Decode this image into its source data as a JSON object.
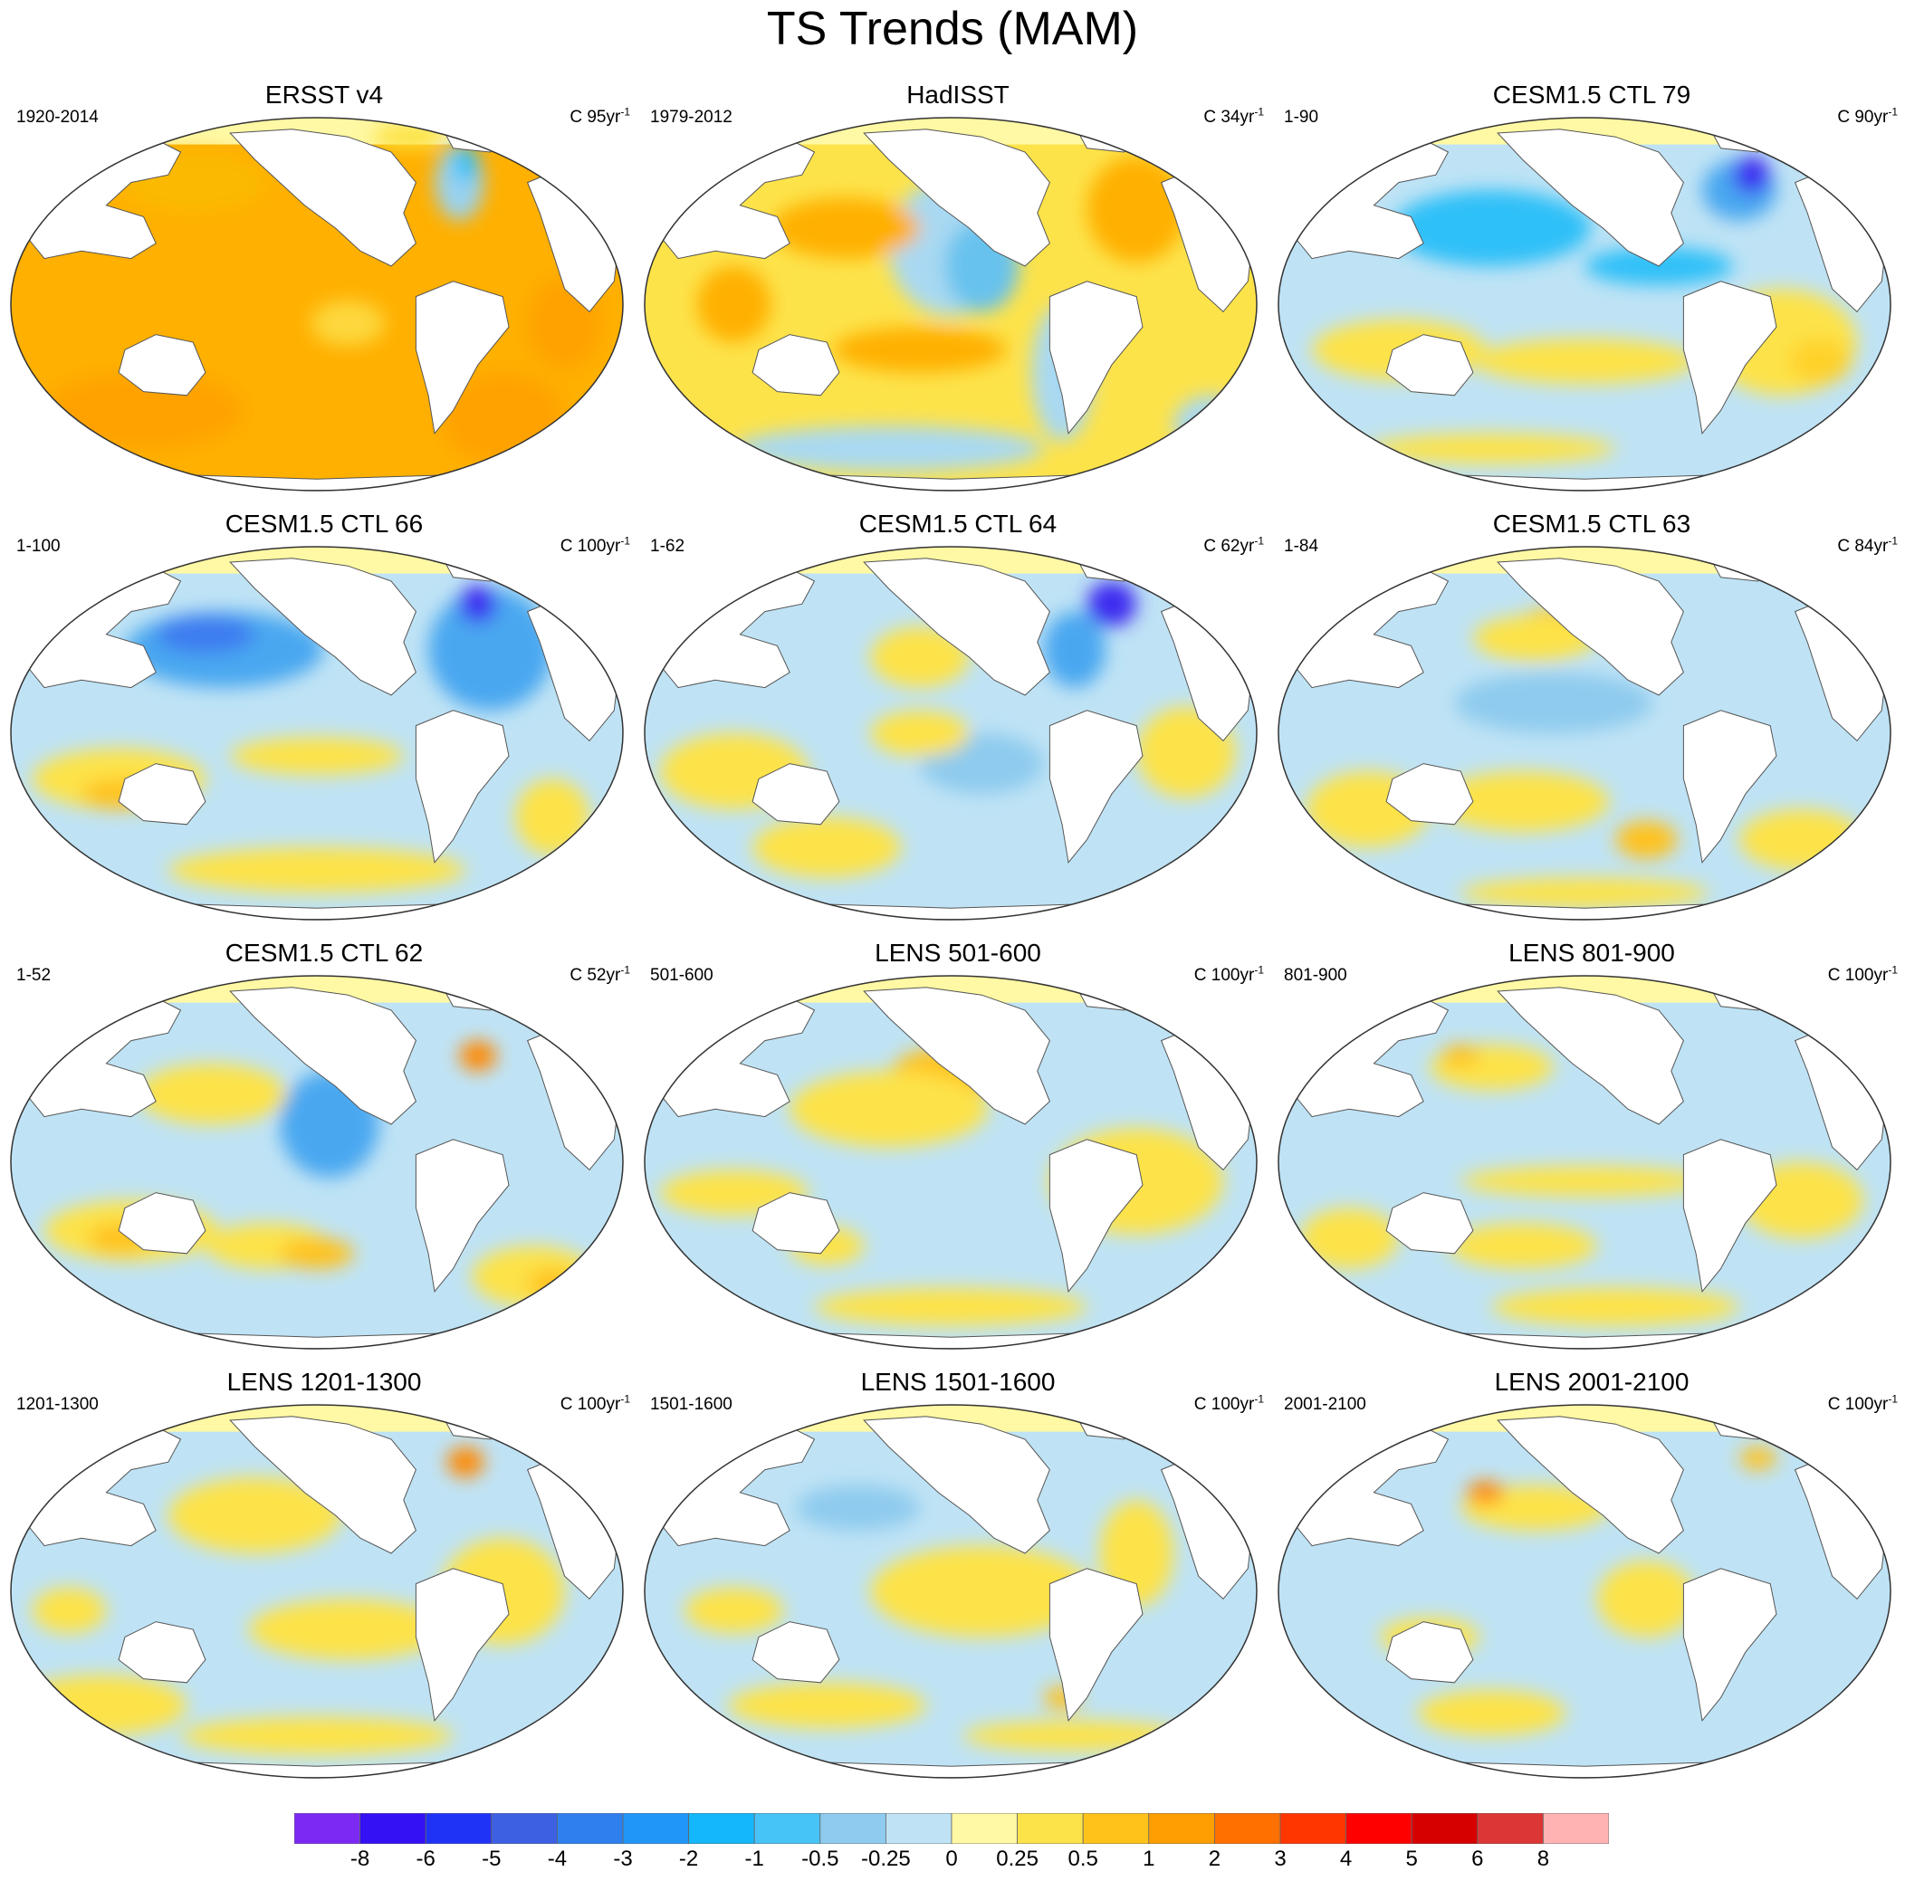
{
  "title": "TS Trends (MAM)",
  "panels": [
    {
      "title": "ERSST v4",
      "period": "1920-2014",
      "scale_value": "C 95yr",
      "scale_exp": "-1",
      "bg": "#ffb000",
      "blobs": [
        [
          "#fbb900",
          0.3,
          0.18,
          0.12,
          0.08
        ],
        [
          "#9ad2ef",
          0.73,
          0.18,
          0.04,
          0.1
        ],
        [
          "#2ec0f8",
          0.74,
          0.13,
          0.02,
          0.05
        ],
        [
          "#fce03a",
          0.65,
          0.06,
          0.06,
          0.03
        ],
        [
          "#ffa200",
          0.22,
          0.78,
          0.16,
          0.1
        ],
        [
          "#ffa200",
          0.8,
          0.8,
          0.1,
          0.12
        ],
        [
          "#fdd83c",
          0.55,
          0.55,
          0.06,
          0.06
        ],
        [
          "#ffa200",
          0.9,
          0.55,
          0.06,
          0.12
        ]
      ]
    },
    {
      "title": "HadISST",
      "period": "1979-2012",
      "scale_value": "C 34yr",
      "scale_exp": "-1",
      "bg": "#fde34a",
      "blobs": [
        [
          "#a9d9f2",
          0.5,
          0.35,
          0.1,
          0.18
        ],
        [
          "#68c2ee",
          0.55,
          0.4,
          0.06,
          0.12
        ],
        [
          "#ffb000",
          0.33,
          0.3,
          0.12,
          0.08
        ],
        [
          "#ffb000",
          0.8,
          0.25,
          0.08,
          0.14
        ],
        [
          "#ffb000",
          0.45,
          0.62,
          0.14,
          0.06
        ],
        [
          "#a9d9f2",
          0.4,
          0.88,
          0.25,
          0.06
        ],
        [
          "#a9d9f2",
          0.68,
          0.68,
          0.05,
          0.18
        ],
        [
          "#ffb000",
          0.15,
          0.5,
          0.06,
          0.1
        ],
        [
          "#a9d9f2",
          0.92,
          0.82,
          0.06,
          0.08
        ]
      ]
    },
    {
      "title": "CESM1.5 CTL 79",
      "period": "1-90",
      "scale_value": "C 90yr",
      "scale_exp": "-1",
      "bg": "#bfe3f5",
      "blobs": [
        [
          "#2ec0f8",
          0.35,
          0.3,
          0.16,
          0.1
        ],
        [
          "#49a7f0",
          0.75,
          0.2,
          0.06,
          0.08
        ],
        [
          "#3d2cf0",
          0.77,
          0.16,
          0.03,
          0.05
        ],
        [
          "#fde34a",
          0.2,
          0.62,
          0.14,
          0.08
        ],
        [
          "#fde34a",
          0.5,
          0.65,
          0.18,
          0.06
        ],
        [
          "#fde34a",
          0.82,
          0.6,
          0.12,
          0.14
        ],
        [
          "#ffd22a",
          0.88,
          0.65,
          0.05,
          0.06
        ],
        [
          "#fde34a",
          0.35,
          0.88,
          0.2,
          0.04
        ],
        [
          "#2ec0f8",
          0.62,
          0.4,
          0.12,
          0.05
        ]
      ]
    },
    {
      "title": "CESM1.5 CTL 66",
      "period": "1-100",
      "scale_value": "C 100yr",
      "scale_exp": "-1",
      "bg": "#bfe3f5",
      "blobs": [
        [
          "#49a7f0",
          0.35,
          0.28,
          0.16,
          0.1
        ],
        [
          "#3d7cf0",
          0.32,
          0.24,
          0.08,
          0.05
        ],
        [
          "#49a7f0",
          0.78,
          0.28,
          0.1,
          0.16
        ],
        [
          "#3d2cf0",
          0.76,
          0.16,
          0.03,
          0.05
        ],
        [
          "#fde34a",
          0.18,
          0.62,
          0.14,
          0.08
        ],
        [
          "#ffc21a",
          0.18,
          0.66,
          0.06,
          0.04
        ],
        [
          "#fde34a",
          0.5,
          0.56,
          0.14,
          0.05
        ],
        [
          "#fde34a",
          0.5,
          0.86,
          0.24,
          0.06
        ],
        [
          "#fde34a",
          0.88,
          0.72,
          0.06,
          0.1
        ]
      ]
    },
    {
      "title": "CESM1.5 CTL 64",
      "period": "1-62",
      "scale_value": "C 62yr",
      "scale_exp": "-1",
      "bg": "#bfe3f5",
      "blobs": [
        [
          "#ffc21a",
          0.48,
          0.28,
          0.04,
          0.05
        ],
        [
          "#fde34a",
          0.45,
          0.3,
          0.08,
          0.08
        ],
        [
          "#3d2cf0",
          0.76,
          0.16,
          0.04,
          0.06
        ],
        [
          "#49a7f0",
          0.7,
          0.28,
          0.05,
          0.1
        ],
        [
          "#fde34a",
          0.15,
          0.6,
          0.12,
          0.1
        ],
        [
          "#fde34a",
          0.3,
          0.8,
          0.12,
          0.08
        ],
        [
          "#fde34a",
          0.88,
          0.55,
          0.08,
          0.12
        ],
        [
          "#8ecbee",
          0.55,
          0.58,
          0.1,
          0.08
        ],
        [
          "#fde34a",
          0.45,
          0.5,
          0.08,
          0.06
        ]
      ]
    },
    {
      "title": "CESM1.5 CTL 63",
      "period": "1-84",
      "scale_value": "C 84yr",
      "scale_exp": "-1",
      "bg": "#bfe3f5",
      "blobs": [
        [
          "#ffc21a",
          0.45,
          0.22,
          0.06,
          0.05
        ],
        [
          "#fde34a",
          0.42,
          0.25,
          0.1,
          0.06
        ],
        [
          "#8ecbee",
          0.45,
          0.42,
          0.16,
          0.08
        ],
        [
          "#fde34a",
          0.4,
          0.68,
          0.14,
          0.08
        ],
        [
          "#ffc21a",
          0.6,
          0.78,
          0.05,
          0.05
        ],
        [
          "#fde34a",
          0.15,
          0.7,
          0.1,
          0.1
        ],
        [
          "#fde34a",
          0.85,
          0.78,
          0.1,
          0.08
        ],
        [
          "#fde34a",
          0.5,
          0.92,
          0.2,
          0.04
        ]
      ]
    },
    {
      "title": "CESM1.5 CTL 62",
      "period": "1-52",
      "scale_value": "C 52yr",
      "scale_exp": "-1",
      "bg": "#bfe3f5",
      "blobs": [
        [
          "#fde34a",
          0.33,
          0.32,
          0.12,
          0.08
        ],
        [
          "#fde34a",
          0.2,
          0.68,
          0.14,
          0.08
        ],
        [
          "#ffc21a",
          0.18,
          0.7,
          0.05,
          0.04
        ],
        [
          "#fde34a",
          0.42,
          0.72,
          0.1,
          0.06
        ],
        [
          "#ffc21a",
          0.5,
          0.74,
          0.06,
          0.04
        ],
        [
          "#49a7f0",
          0.52,
          0.4,
          0.08,
          0.14
        ],
        [
          "#ff8800",
          0.76,
          0.22,
          0.03,
          0.04
        ],
        [
          "#fde34a",
          0.85,
          0.8,
          0.1,
          0.08
        ],
        [
          "#ffc21a",
          0.88,
          0.82,
          0.04,
          0.04
        ]
      ]
    },
    {
      "title": "LENS 501-600",
      "period": "501-600",
      "scale_value": "C 100yr",
      "scale_exp": "-1",
      "bg": "#bfe3f5",
      "blobs": [
        [
          "#ffc21a",
          0.48,
          0.28,
          0.08,
          0.08
        ],
        [
          "#fde34a",
          0.4,
          0.36,
          0.16,
          0.1
        ],
        [
          "#fde34a",
          0.15,
          0.58,
          0.12,
          0.06
        ],
        [
          "#fde34a",
          0.8,
          0.55,
          0.14,
          0.14
        ],
        [
          "#fde34a",
          0.5,
          0.88,
          0.22,
          0.05
        ],
        [
          "#fde34a",
          0.3,
          0.72,
          0.06,
          0.05
        ]
      ]
    },
    {
      "title": "LENS 801-900",
      "period": "801-900",
      "scale_value": "C 100yr",
      "scale_exp": "-1",
      "bg": "#bfe3f5",
      "blobs": [
        [
          "#fde34a",
          0.35,
          0.25,
          0.1,
          0.06
        ],
        [
          "#ffc21a",
          0.3,
          0.22,
          0.03,
          0.03
        ],
        [
          "#fde34a",
          0.5,
          0.55,
          0.2,
          0.04
        ],
        [
          "#fde34a",
          0.4,
          0.72,
          0.12,
          0.06
        ],
        [
          "#fde34a",
          0.85,
          0.6,
          0.1,
          0.1
        ],
        [
          "#fde34a",
          0.55,
          0.88,
          0.2,
          0.05
        ],
        [
          "#fde34a",
          0.12,
          0.7,
          0.08,
          0.08
        ]
      ]
    },
    {
      "title": "LENS 1201-1300",
      "period": "1201-1300",
      "scale_value": "C 100yr",
      "scale_exp": "-1",
      "bg": "#bfe3f5",
      "blobs": [
        [
          "#fde34a",
          0.4,
          0.3,
          0.14,
          0.1
        ],
        [
          "#fde34a",
          0.55,
          0.6,
          0.16,
          0.08
        ],
        [
          "#fde34a",
          0.15,
          0.8,
          0.14,
          0.08
        ],
        [
          "#fde34a",
          0.8,
          0.5,
          0.1,
          0.14
        ],
        [
          "#fde34a",
          0.5,
          0.88,
          0.22,
          0.05
        ],
        [
          "#ff8800",
          0.74,
          0.16,
          0.03,
          0.04
        ],
        [
          "#fde34a",
          0.1,
          0.55,
          0.06,
          0.06
        ]
      ]
    },
    {
      "title": "LENS 1501-1600",
      "period": "1501-1600",
      "scale_value": "C 100yr",
      "scale_exp": "-1",
      "bg": "#bfe3f5",
      "blobs": [
        [
          "#fde34a",
          0.55,
          0.5,
          0.18,
          0.12
        ],
        [
          "#fde34a",
          0.3,
          0.8,
          0.16,
          0.06
        ],
        [
          "#fde34a",
          0.7,
          0.88,
          0.18,
          0.04
        ],
        [
          "#fde34a",
          0.8,
          0.4,
          0.06,
          0.14
        ],
        [
          "#8ecbee",
          0.35,
          0.28,
          0.1,
          0.06
        ],
        [
          "#fde34a",
          0.15,
          0.55,
          0.08,
          0.06
        ],
        [
          "#ffc21a",
          0.68,
          0.78,
          0.03,
          0.03
        ]
      ]
    },
    {
      "title": "LENS 2001-2100",
      "period": "2001-2100",
      "scale_value": "C 100yr",
      "scale_exp": "-1",
      "bg": "#bfe3f5",
      "blobs": [
        [
          "#ffc21a",
          0.47,
          0.28,
          0.06,
          0.04
        ],
        [
          "#fde34a",
          0.42,
          0.28,
          0.12,
          0.06
        ],
        [
          "#ff8800",
          0.34,
          0.24,
          0.03,
          0.03
        ],
        [
          "#ffc21a",
          0.78,
          0.15,
          0.03,
          0.03
        ],
        [
          "#fde34a",
          0.6,
          0.52,
          0.08,
          0.1
        ],
        [
          "#fde34a",
          0.25,
          0.62,
          0.08,
          0.05
        ],
        [
          "#fde34a",
          0.35,
          0.82,
          0.12,
          0.06
        ]
      ]
    }
  ],
  "colorbar": {
    "colors": [
      "#7c29f4",
      "#3410f4",
      "#1f33f6",
      "#3d5fe1",
      "#2e80ee",
      "#2196f9",
      "#14b7fc",
      "#47c4f7",
      "#8ecbee",
      "#bfe3f5",
      "#fff8a4",
      "#fde34a",
      "#ffc21a",
      "#ff9e00",
      "#ff7000",
      "#ff3600",
      "#ff0000",
      "#d60000",
      "#dc3636",
      "#ffb3b3"
    ],
    "labels": [
      "-8",
      "-6",
      "-5",
      "-4",
      "-3",
      "-2",
      "-1",
      "-0.5",
      "-0.25",
      "0",
      "0.25",
      "0.5",
      "1",
      "2",
      "3",
      "4",
      "5",
      "6",
      "8"
    ]
  }
}
